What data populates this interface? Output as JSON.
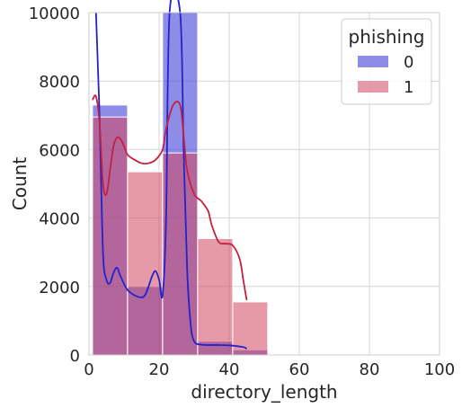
{
  "chart_data": {
    "type": "bar",
    "subtype": "histogram-with-kde",
    "xlabel": "directory_length",
    "ylabel": "Count",
    "xlim": [
      0,
      100
    ],
    "ylim": [
      0,
      10000
    ],
    "x_ticks": [
      0,
      20,
      40,
      60,
      80,
      100
    ],
    "y_ticks": [
      0,
      2000,
      4000,
      6000,
      8000,
      10000
    ],
    "grid": true,
    "legend": {
      "title": "phishing",
      "position": "top-right"
    },
    "bin_edges": [
      1,
      11,
      21,
      31,
      41,
      51
    ],
    "series": [
      {
        "name": "0",
        "color": "#3b3bd6",
        "values": [
          7300,
          2000,
          10000,
          400,
          150
        ],
        "kde": [
          [
            2,
            10000
          ],
          [
            3,
            7000
          ],
          [
            4,
            3000
          ],
          [
            5,
            2200
          ],
          [
            6,
            2100
          ],
          [
            7,
            2400
          ],
          [
            8,
            2550
          ],
          [
            9,
            2300
          ],
          [
            11,
            1900
          ],
          [
            14,
            1700
          ],
          [
            16,
            1750
          ],
          [
            18,
            2300
          ],
          [
            19,
            2450
          ],
          [
            20,
            2200
          ],
          [
            21,
            1750
          ],
          [
            22,
            4000
          ],
          [
            23,
            10000
          ],
          [
            26,
            10000
          ],
          [
            27,
            6000
          ],
          [
            28,
            2500
          ],
          [
            29,
            900
          ],
          [
            30,
            400
          ],
          [
            32,
            300
          ],
          [
            36,
            290
          ],
          [
            40,
            280
          ],
          [
            44,
            230
          ],
          [
            45,
            180
          ]
        ]
      },
      {
        "name": "1",
        "color": "#d1475f",
        "values": [
          6950,
          5350,
          5900,
          3400,
          1550
        ],
        "kde": [
          [
            1,
            7450
          ],
          [
            2,
            7550
          ],
          [
            3,
            6800
          ],
          [
            4,
            5000
          ],
          [
            5,
            4700
          ],
          [
            6,
            5400
          ],
          [
            7,
            6100
          ],
          [
            8,
            6350
          ],
          [
            9,
            6300
          ],
          [
            10,
            6100
          ],
          [
            11,
            5850
          ],
          [
            13,
            5700
          ],
          [
            15,
            5600
          ],
          [
            17,
            5600
          ],
          [
            19,
            5700
          ],
          [
            21,
            6000
          ],
          [
            22,
            6600
          ],
          [
            24,
            7300
          ],
          [
            26,
            7300
          ],
          [
            27,
            6400
          ],
          [
            28,
            5400
          ],
          [
            30,
            4700
          ],
          [
            32,
            4500
          ],
          [
            34,
            4200
          ],
          [
            35,
            3800
          ],
          [
            37,
            3300
          ],
          [
            39,
            3250
          ],
          [
            41,
            3200
          ],
          [
            43,
            2800
          ],
          [
            44,
            2200
          ],
          [
            45,
            1600
          ]
        ]
      }
    ]
  }
}
